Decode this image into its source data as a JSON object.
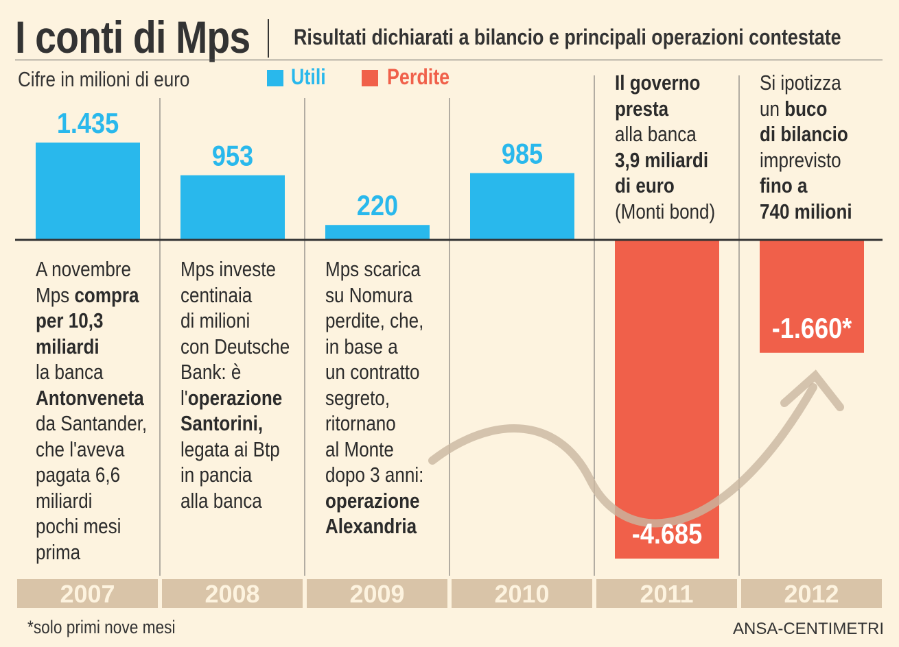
{
  "header": {
    "title": "I conti di Mps",
    "subtitle": "Risultati dichiarati a bilancio e principali operazioni contestate",
    "units": "Cifre in milioni di euro"
  },
  "legend": {
    "profit_label": "Utili",
    "loss_label": "Perdite",
    "profit_color": "#29b8ec",
    "loss_color": "#f0604a"
  },
  "chart_data": {
    "type": "bar",
    "categories": [
      "2007",
      "2008",
      "2009",
      "2010",
      "2011",
      "2012"
    ],
    "values": [
      1435,
      953,
      220,
      985,
      -4685,
      -1660
    ],
    "value_labels": [
      "1.435",
      "953",
      "220",
      "985",
      "-4.685",
      "-1.660*"
    ],
    "series": [
      {
        "name": "Utili / Perdite",
        "values": [
          1435,
          953,
          220,
          985,
          -4685,
          -1660
        ]
      }
    ],
    "title": "I conti di Mps",
    "ylabel": "Cifre in milioni di euro",
    "ylim": [
      -4685,
      1435
    ],
    "grid": false,
    "legend_position": "top"
  },
  "notes": [
    [
      [
        "A novembre"
      ],
      [
        "Mps ",
        "*compra"
      ],
      [
        "*per 10,3"
      ],
      [
        "*miliardi"
      ],
      [
        "la banca"
      ],
      [
        "*Antonveneta"
      ],
      [
        "da Santander,"
      ],
      [
        "che l'aveva"
      ],
      [
        "pagata 6,6"
      ],
      [
        "miliardi"
      ],
      [
        "pochi mesi"
      ],
      [
        "prima"
      ]
    ],
    [
      [
        "Mps investe"
      ],
      [
        "centinaia"
      ],
      [
        "di milioni"
      ],
      [
        "con Deutsche"
      ],
      [
        "Bank: è"
      ],
      [
        "l'",
        "*operazione"
      ],
      [
        "*Santorini,"
      ],
      [
        "legata ai Btp"
      ],
      [
        "in pancia"
      ],
      [
        "alla banca"
      ]
    ],
    [
      [
        "Mps scarica"
      ],
      [
        "su Nomura"
      ],
      [
        "perdite, che,"
      ],
      [
        "in base a"
      ],
      [
        "un contratto"
      ],
      [
        "segreto,"
      ],
      [
        "ritornano"
      ],
      [
        "al Monte"
      ],
      [
        "dopo 3 anni:"
      ],
      [
        "*operazione"
      ],
      [
        "*Alexandria"
      ]
    ],
    [],
    [
      [
        "*Il governo"
      ],
      [
        "*presta"
      ],
      [
        "alla banca"
      ],
      [
        "*3,9 miliardi"
      ],
      [
        "*di euro"
      ],
      [
        "(Monti bond)"
      ]
    ],
    [
      [
        "Si ipotizza"
      ],
      [
        "un ",
        "*buco"
      ],
      [
        "*di bilancio"
      ],
      [
        "imprevisto"
      ],
      [
        "*fino a"
      ],
      [
        "*740 milioni"
      ]
    ]
  ],
  "footer": {
    "footnote": "*solo primi nove mesi",
    "credit": "ANSA-CENTIMETRI"
  }
}
